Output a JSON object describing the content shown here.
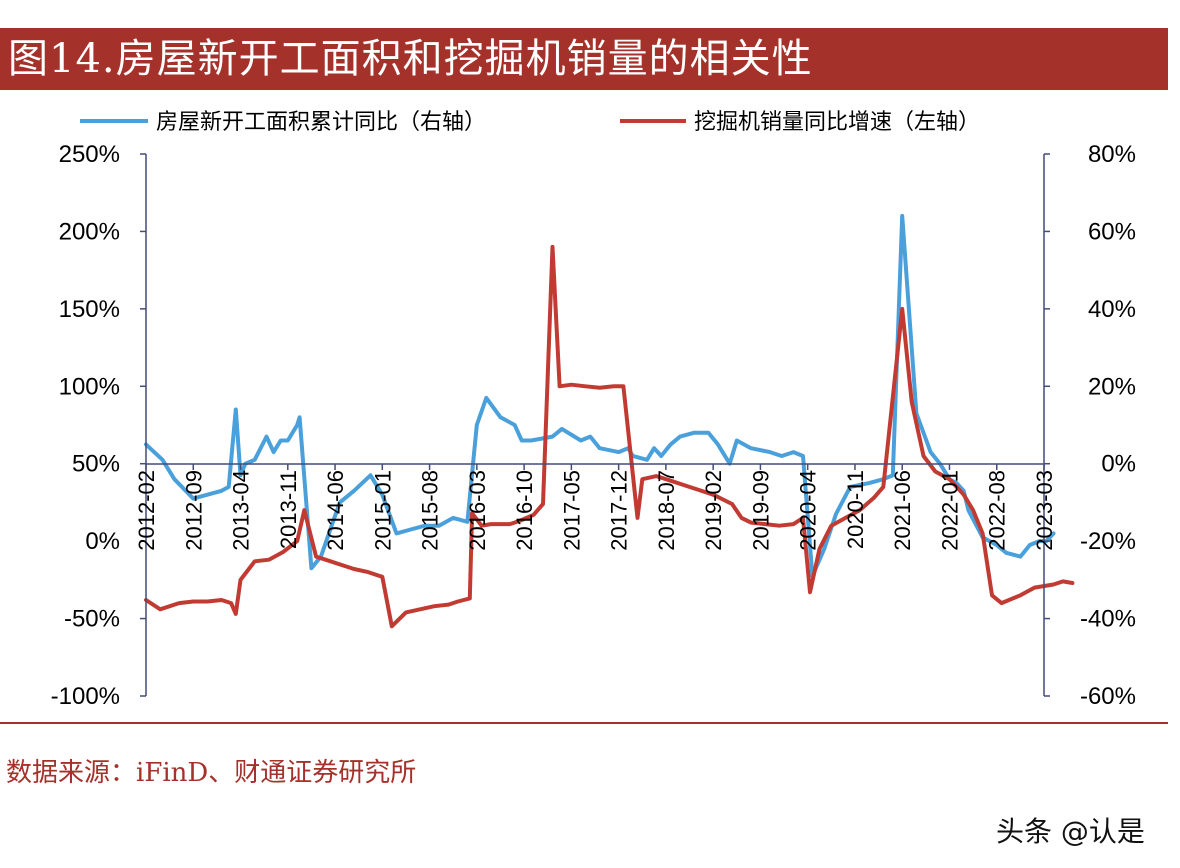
{
  "title": "图14.房屋新开工面积和挖掘机销量的相关性",
  "source": "数据来源：iFinD、财通证券研究所",
  "watermark": "头条 @认是",
  "colors": {
    "accent": "#a5312b",
    "blue": "#4aa0db",
    "red": "#c23b33",
    "axis": "#444c7a"
  },
  "chart_data": {
    "type": "line",
    "grid": false,
    "legend_position": "top",
    "x_tick_labels": [
      "2012-02",
      "2012-09",
      "2013-04",
      "2013-11",
      "2014-06",
      "2015-01",
      "2015-08",
      "2016-03",
      "2016-10",
      "2017-05",
      "2017-12",
      "2018-07",
      "2019-02",
      "2019-09",
      "2020-04",
      "2020-11",
      "2021-06",
      "2022-01",
      "2022-08",
      "2023-03"
    ],
    "left_axis": {
      "ticks": [
        "250%",
        "200%",
        "150%",
        "100%",
        "50%",
        "0%",
        "-50%",
        "-100%"
      ],
      "ylim": [
        -100,
        250
      ]
    },
    "right_axis": {
      "ticks": [
        "80%",
        "60%",
        "40%",
        "20%",
        "0%",
        "-20%",
        "-40%",
        "-60%"
      ],
      "ylim": [
        -60,
        80
      ]
    },
    "series": [
      {
        "name": "房屋新开工面积累计同比（右轴）",
        "axis": "right",
        "color": "#4aa0db",
        "points": [
          [
            0,
            5
          ],
          [
            0.35,
            1
          ],
          [
            0.6,
            -4
          ],
          [
            1.0,
            -9
          ],
          [
            1.3,
            -8
          ],
          [
            1.6,
            -7
          ],
          [
            1.75,
            -6
          ],
          [
            1.9,
            14
          ],
          [
            2.0,
            -3
          ],
          [
            2.1,
            0
          ],
          [
            2.3,
            1
          ],
          [
            2.55,
            7
          ],
          [
            2.7,
            3
          ],
          [
            2.85,
            6
          ],
          [
            3.0,
            6
          ],
          [
            3.2,
            10
          ],
          [
            3.25,
            12
          ],
          [
            3.5,
            -27
          ],
          [
            3.7,
            -24
          ],
          [
            3.9,
            -17
          ],
          [
            4.1,
            -10
          ],
          [
            4.4,
            -7
          ],
          [
            4.75,
            -3
          ],
          [
            5.0,
            -8
          ],
          [
            5.3,
            -18
          ],
          [
            5.6,
            -17
          ],
          [
            5.9,
            -16
          ],
          [
            6.2,
            -16
          ],
          [
            6.5,
            -14
          ],
          [
            6.8,
            -15
          ],
          [
            7.0,
            10
          ],
          [
            7.2,
            17
          ],
          [
            7.5,
            12
          ],
          [
            7.8,
            10
          ],
          [
            7.95,
            6
          ],
          [
            8.15,
            6
          ],
          [
            8.6,
            7
          ],
          [
            8.8,
            9
          ],
          [
            9.2,
            6
          ],
          [
            9.4,
            7
          ],
          [
            9.6,
            4
          ],
          [
            10.0,
            3
          ],
          [
            10.2,
            4
          ],
          [
            10.3,
            2
          ],
          [
            10.6,
            1
          ],
          [
            10.75,
            4
          ],
          [
            10.9,
            2
          ],
          [
            11.1,
            5
          ],
          [
            11.3,
            7
          ],
          [
            11.6,
            8
          ],
          [
            11.9,
            8
          ],
          [
            12.1,
            5
          ],
          [
            12.35,
            0
          ],
          [
            12.5,
            6
          ],
          [
            12.8,
            4
          ],
          [
            13.2,
            3
          ],
          [
            13.45,
            2
          ],
          [
            13.7,
            3
          ],
          [
            13.9,
            2
          ],
          [
            14.1,
            -29
          ],
          [
            14.35,
            -22
          ],
          [
            14.6,
            -13
          ],
          [
            14.9,
            -6
          ],
          [
            15.3,
            -5
          ],
          [
            15.6,
            -4
          ],
          [
            15.8,
            -3
          ],
          [
            16.0,
            64
          ],
          [
            16.3,
            13
          ],
          [
            16.6,
            3
          ],
          [
            16.8,
            0
          ],
          [
            17.0,
            -4
          ],
          [
            17.15,
            -5
          ],
          [
            17.3,
            -7
          ],
          [
            17.4,
            -12
          ],
          [
            17.7,
            -19
          ],
          [
            18.0,
            -21
          ],
          [
            18.2,
            -23
          ],
          [
            18.5,
            -24
          ],
          [
            18.7,
            -21
          ],
          [
            18.9,
            -20
          ],
          [
            19.05,
            -20
          ],
          [
            19.2,
            -18
          ]
        ]
      },
      {
        "name": "挖掘机销量同比增速（左轴）",
        "axis": "left",
        "color": "#c23b33",
        "points": [
          [
            0,
            -38
          ],
          [
            0.3,
            -44
          ],
          [
            0.7,
            -40
          ],
          [
            1.0,
            -39
          ],
          [
            1.3,
            -39
          ],
          [
            1.6,
            -38
          ],
          [
            1.8,
            -40
          ],
          [
            1.9,
            -47
          ],
          [
            2.0,
            -25
          ],
          [
            2.3,
            -13
          ],
          [
            2.6,
            -12
          ],
          [
            2.9,
            -7
          ],
          [
            3.2,
            0
          ],
          [
            3.35,
            20
          ],
          [
            3.6,
            -10
          ],
          [
            3.8,
            -12
          ],
          [
            4.1,
            -15
          ],
          [
            4.4,
            -18
          ],
          [
            4.7,
            -20
          ],
          [
            5.0,
            -23
          ],
          [
            5.2,
            -55
          ],
          [
            5.5,
            -46
          ],
          [
            5.8,
            -44
          ],
          [
            6.1,
            -42
          ],
          [
            6.4,
            -41
          ],
          [
            6.6,
            -39
          ],
          [
            6.85,
            -37
          ],
          [
            6.9,
            18
          ],
          [
            7.1,
            10
          ],
          [
            7.3,
            11
          ],
          [
            7.5,
            11
          ],
          [
            7.7,
            11
          ],
          [
            7.9,
            13
          ],
          [
            8.2,
            17
          ],
          [
            8.4,
            24
          ],
          [
            8.6,
            190
          ],
          [
            8.75,
            100
          ],
          [
            9.0,
            101
          ],
          [
            9.3,
            100
          ],
          [
            9.6,
            99
          ],
          [
            9.9,
            100
          ],
          [
            10.1,
            100
          ],
          [
            10.4,
            15
          ],
          [
            10.5,
            40
          ],
          [
            10.8,
            42
          ],
          [
            11.1,
            39
          ],
          [
            11.4,
            36
          ],
          [
            11.7,
            33
          ],
          [
            12.0,
            30
          ],
          [
            12.4,
            24
          ],
          [
            12.6,
            15
          ],
          [
            12.8,
            12
          ],
          [
            13.1,
            11
          ],
          [
            13.4,
            10
          ],
          [
            13.7,
            11
          ],
          [
            13.9,
            15
          ],
          [
            14.05,
            -33
          ],
          [
            14.25,
            -5
          ],
          [
            14.5,
            10
          ],
          [
            14.8,
            15
          ],
          [
            15.1,
            20
          ],
          [
            15.4,
            28
          ],
          [
            15.6,
            35
          ],
          [
            16.0,
            150
          ],
          [
            16.2,
            90
          ],
          [
            16.45,
            55
          ],
          [
            16.7,
            45
          ],
          [
            17.0,
            40
          ],
          [
            17.3,
            30
          ],
          [
            17.5,
            20
          ],
          [
            17.7,
            5
          ],
          [
            17.9,
            -35
          ],
          [
            18.1,
            -40
          ],
          [
            18.5,
            -35
          ],
          [
            18.8,
            -30
          ],
          [
            19.2,
            -28
          ],
          [
            19.4,
            -26
          ],
          [
            19.6,
            -27
          ]
        ]
      }
    ]
  }
}
